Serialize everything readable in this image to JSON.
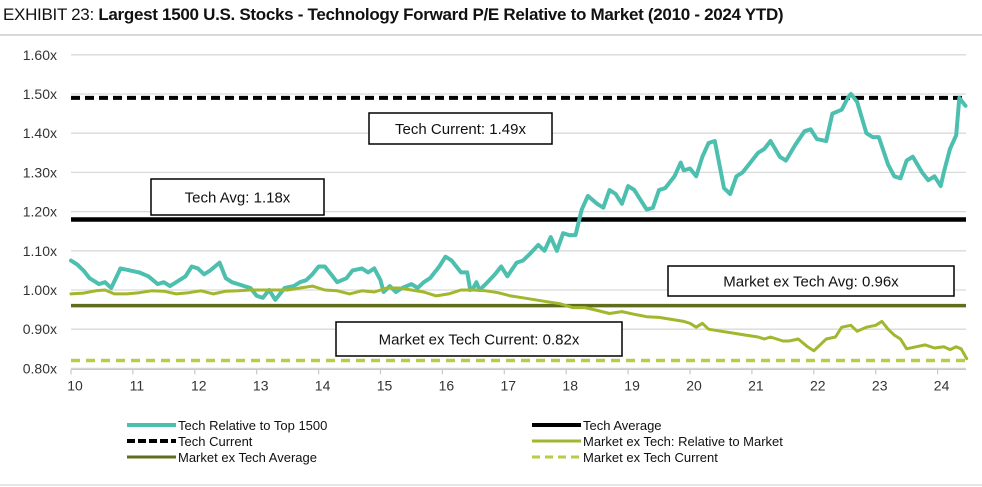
{
  "header": {
    "exhibit_label": "EXHIBIT 23:",
    "title": "Largest 1500 U.S. Stocks - Technology Forward P/E Relative to Market (2010 - 2024 YTD)"
  },
  "colors": {
    "tech": "#4dbfae",
    "tech_avg": "#000000",
    "tech_current": "#000000",
    "mkt": "#a2b72e",
    "mkt_avg": "#5f6e1e",
    "mkt_current": "#b9cc48",
    "grid": "#d9d9d9"
  },
  "chart_data": {
    "type": "line",
    "title": "Largest 1500 U.S. Stocks - Technology Forward P/E Relative to Market (2010 - 2024 YTD)",
    "xlabel": "",
    "ylabel": "",
    "xlim": [
      10,
      24.47
    ],
    "ylim": [
      0.8,
      1.6
    ],
    "grid": true,
    "x_ticks": [
      "10",
      "11",
      "12",
      "13",
      "14",
      "15",
      "16",
      "17",
      "18",
      "19",
      "20",
      "21",
      "22",
      "23",
      "24"
    ],
    "y_ticks": [
      "0.80x",
      "0.90x",
      "1.00x",
      "1.10x",
      "1.20x",
      "1.30x",
      "1.40x",
      "1.50x",
      "1.60x"
    ],
    "y_tick_values": [
      0.8,
      0.9,
      1.0,
      1.1,
      1.2,
      1.3,
      1.4,
      1.5,
      1.6
    ],
    "legend_position": "bottom",
    "series": [
      {
        "name": "Tech Relative to Top 1500",
        "style": "solid",
        "points": [
          [
            10.0,
            1.075
          ],
          [
            10.1,
            1.065
          ],
          [
            10.2,
            1.05
          ],
          [
            10.3,
            1.03
          ],
          [
            10.45,
            1.015
          ],
          [
            10.55,
            1.02
          ],
          [
            10.65,
            1.005
          ],
          [
            10.8,
            1.055
          ],
          [
            10.95,
            1.05
          ],
          [
            11.1,
            1.045
          ],
          [
            11.25,
            1.035
          ],
          [
            11.4,
            1.015
          ],
          [
            11.5,
            1.02
          ],
          [
            11.6,
            1.01
          ],
          [
            11.7,
            1.02
          ],
          [
            11.85,
            1.035
          ],
          [
            11.95,
            1.06
          ],
          [
            12.05,
            1.055
          ],
          [
            12.15,
            1.04
          ],
          [
            12.25,
            1.05
          ],
          [
            12.4,
            1.07
          ],
          [
            12.5,
            1.03
          ],
          [
            12.6,
            1.02
          ],
          [
            12.7,
            1.015
          ],
          [
            12.8,
            1.01
          ],
          [
            12.9,
            1.005
          ],
          [
            13.0,
            0.985
          ],
          [
            13.1,
            0.98
          ],
          [
            13.2,
            1.0
          ],
          [
            13.3,
            0.975
          ],
          [
            13.45,
            1.005
          ],
          [
            13.6,
            1.01
          ],
          [
            13.7,
            1.02
          ],
          [
            13.8,
            1.025
          ],
          [
            13.9,
            1.04
          ],
          [
            14.0,
            1.06
          ],
          [
            14.1,
            1.06
          ],
          [
            14.2,
            1.04
          ],
          [
            14.3,
            1.02
          ],
          [
            14.45,
            1.03
          ],
          [
            14.55,
            1.05
          ],
          [
            14.7,
            1.055
          ],
          [
            14.8,
            1.045
          ],
          [
            14.9,
            1.055
          ],
          [
            15.0,
            1.025
          ],
          [
            15.05,
            0.995
          ],
          [
            15.15,
            1.01
          ],
          [
            15.25,
            0.995
          ],
          [
            15.35,
            1.005
          ],
          [
            15.5,
            1.015
          ],
          [
            15.6,
            1.005
          ],
          [
            15.7,
            1.02
          ],
          [
            15.8,
            1.03
          ],
          [
            15.95,
            1.06
          ],
          [
            16.05,
            1.085
          ],
          [
            16.15,
            1.075
          ],
          [
            16.3,
            1.045
          ],
          [
            16.4,
            1.045
          ],
          [
            16.45,
            1.0
          ],
          [
            16.5,
            1.005
          ],
          [
            16.55,
            1.02
          ],
          [
            16.6,
            1.0
          ],
          [
            16.7,
            1.015
          ],
          [
            16.85,
            1.04
          ],
          [
            16.95,
            1.06
          ],
          [
            17.05,
            1.035
          ],
          [
            17.2,
            1.07
          ],
          [
            17.3,
            1.075
          ],
          [
            17.4,
            1.09
          ],
          [
            17.55,
            1.115
          ],
          [
            17.65,
            1.1
          ],
          [
            17.75,
            1.135
          ],
          [
            17.85,
            1.1
          ],
          [
            17.95,
            1.145
          ],
          [
            18.05,
            1.14
          ],
          [
            18.15,
            1.14
          ],
          [
            18.25,
            1.205
          ],
          [
            18.35,
            1.24
          ],
          [
            18.5,
            1.22
          ],
          [
            18.6,
            1.21
          ],
          [
            18.7,
            1.255
          ],
          [
            18.8,
            1.245
          ],
          [
            18.9,
            1.22
          ],
          [
            19.0,
            1.265
          ],
          [
            19.1,
            1.255
          ],
          [
            19.2,
            1.23
          ],
          [
            19.3,
            1.205
          ],
          [
            19.4,
            1.21
          ],
          [
            19.5,
            1.255
          ],
          [
            19.6,
            1.26
          ],
          [
            19.75,
            1.29
          ],
          [
            19.85,
            1.325
          ],
          [
            19.9,
            1.305
          ],
          [
            20.0,
            1.31
          ],
          [
            20.1,
            1.29
          ],
          [
            20.2,
            1.34
          ],
          [
            20.3,
            1.375
          ],
          [
            20.4,
            1.38
          ],
          [
            20.45,
            1.34
          ],
          [
            20.55,
            1.26
          ],
          [
            20.65,
            1.245
          ],
          [
            20.75,
            1.29
          ],
          [
            20.85,
            1.3
          ],
          [
            20.95,
            1.32
          ],
          [
            21.1,
            1.35
          ],
          [
            21.2,
            1.36
          ],
          [
            21.3,
            1.38
          ],
          [
            21.45,
            1.34
          ],
          [
            21.55,
            1.33
          ],
          [
            21.7,
            1.37
          ],
          [
            21.85,
            1.405
          ],
          [
            21.95,
            1.41
          ],
          [
            22.05,
            1.385
          ],
          [
            22.2,
            1.38
          ],
          [
            22.3,
            1.45
          ],
          [
            22.45,
            1.46
          ],
          [
            22.55,
            1.49
          ],
          [
            22.6,
            1.5
          ],
          [
            22.7,
            1.48
          ],
          [
            22.85,
            1.4
          ],
          [
            22.95,
            1.39
          ],
          [
            23.05,
            1.39
          ],
          [
            23.2,
            1.32
          ],
          [
            23.3,
            1.29
          ],
          [
            23.4,
            1.285
          ],
          [
            23.5,
            1.33
          ],
          [
            23.6,
            1.34
          ],
          [
            23.75,
            1.3
          ],
          [
            23.85,
            1.28
          ],
          [
            23.95,
            1.29
          ],
          [
            24.05,
            1.265
          ],
          [
            24.1,
            1.3
          ],
          [
            24.2,
            1.36
          ],
          [
            24.3,
            1.395
          ],
          [
            24.35,
            1.49
          ],
          [
            24.45,
            1.47
          ]
        ]
      },
      {
        "name": "Tech Average",
        "style": "solid",
        "value": 1.18
      },
      {
        "name": "Tech Current",
        "style": "dashed",
        "value": 1.49
      },
      {
        "name": "Market ex Tech: Relative to Market",
        "style": "solid",
        "points": [
          [
            10.0,
            0.99
          ],
          [
            10.2,
            0.992
          ],
          [
            10.4,
            0.998
          ],
          [
            10.55,
            1.0
          ],
          [
            10.7,
            0.99
          ],
          [
            10.9,
            0.99
          ],
          [
            11.1,
            0.993
          ],
          [
            11.3,
            0.998
          ],
          [
            11.5,
            0.997
          ],
          [
            11.7,
            0.99
          ],
          [
            11.9,
            0.993
          ],
          [
            12.1,
            0.998
          ],
          [
            12.3,
            0.99
          ],
          [
            12.5,
            0.997
          ],
          [
            12.7,
            0.998
          ],
          [
            12.9,
            1.0
          ],
          [
            13.1,
            1.0
          ],
          [
            13.3,
            1.0
          ],
          [
            13.5,
            1.0
          ],
          [
            13.7,
            1.005
          ],
          [
            13.9,
            1.01
          ],
          [
            14.1,
            1.0
          ],
          [
            14.3,
            0.998
          ],
          [
            14.5,
            0.99
          ],
          [
            14.7,
            0.998
          ],
          [
            14.9,
            0.995
          ],
          [
            15.1,
            1.005
          ],
          [
            15.3,
            1.005
          ],
          [
            15.5,
            1.0
          ],
          [
            15.7,
            0.995
          ],
          [
            15.9,
            0.985
          ],
          [
            16.1,
            0.99
          ],
          [
            16.3,
            1.0
          ],
          [
            16.5,
            1.0
          ],
          [
            16.7,
            0.998
          ],
          [
            16.9,
            0.993
          ],
          [
            17.1,
            0.985
          ],
          [
            17.3,
            0.98
          ],
          [
            17.5,
            0.975
          ],
          [
            17.7,
            0.97
          ],
          [
            17.9,
            0.965
          ],
          [
            18.1,
            0.955
          ],
          [
            18.3,
            0.955
          ],
          [
            18.5,
            0.948
          ],
          [
            18.7,
            0.94
          ],
          [
            18.9,
            0.945
          ],
          [
            19.1,
            0.938
          ],
          [
            19.3,
            0.932
          ],
          [
            19.5,
            0.93
          ],
          [
            19.7,
            0.925
          ],
          [
            19.9,
            0.92
          ],
          [
            20.0,
            0.915
          ],
          [
            20.1,
            0.905
          ],
          [
            20.2,
            0.915
          ],
          [
            20.3,
            0.9
          ],
          [
            20.5,
            0.895
          ],
          [
            20.7,
            0.89
          ],
          [
            20.9,
            0.885
          ],
          [
            21.1,
            0.88
          ],
          [
            21.2,
            0.875
          ],
          [
            21.3,
            0.88
          ],
          [
            21.5,
            0.87
          ],
          [
            21.6,
            0.87
          ],
          [
            21.75,
            0.875
          ],
          [
            21.9,
            0.855
          ],
          [
            22.0,
            0.845
          ],
          [
            22.1,
            0.86
          ],
          [
            22.2,
            0.875
          ],
          [
            22.35,
            0.88
          ],
          [
            22.45,
            0.905
          ],
          [
            22.6,
            0.91
          ],
          [
            22.7,
            0.895
          ],
          [
            22.85,
            0.905
          ],
          [
            23.0,
            0.91
          ],
          [
            23.1,
            0.92
          ],
          [
            23.2,
            0.9
          ],
          [
            23.3,
            0.885
          ],
          [
            23.4,
            0.875
          ],
          [
            23.5,
            0.85
          ],
          [
            23.65,
            0.855
          ],
          [
            23.8,
            0.86
          ],
          [
            23.95,
            0.852
          ],
          [
            24.1,
            0.855
          ],
          [
            24.2,
            0.848
          ],
          [
            24.3,
            0.855
          ],
          [
            24.38,
            0.85
          ],
          [
            24.47,
            0.825
          ]
        ]
      },
      {
        "name": "Market ex Tech Average",
        "style": "solid",
        "value": 0.96
      },
      {
        "name": "Market ex Tech Current",
        "style": "dashed",
        "value": 0.82
      }
    ],
    "annotations": [
      {
        "text": "Tech Current: 1.49x",
        "anchor_value": 1.43
      },
      {
        "text": "Tech Avg: 1.18x",
        "anchor_value": 1.225
      },
      {
        "text": "Market ex Tech Avg: 0.96x",
        "anchor_value": 1.02
      },
      {
        "text": "Market ex Tech Current: 0.82x",
        "anchor_value": 0.875
      }
    ],
    "legend": [
      {
        "label": "Tech Relative to Top 1500",
        "key": "tech",
        "style": "solid"
      },
      {
        "label": "Tech Average",
        "key": "tech_avg",
        "style": "solid"
      },
      {
        "label": "Tech Current",
        "key": "tech_current",
        "style": "dashed"
      },
      {
        "label": "Market ex Tech: Relative to Market",
        "key": "mkt",
        "style": "solid"
      },
      {
        "label": "Market ex Tech Average",
        "key": "mkt_avg",
        "style": "solid"
      },
      {
        "label": "Market ex Tech Current",
        "key": "mkt_current",
        "style": "dashed"
      }
    ]
  }
}
